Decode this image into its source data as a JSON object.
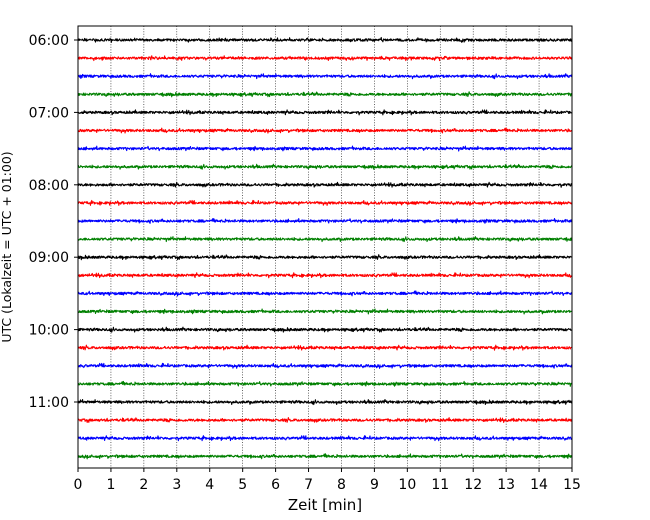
{
  "chart_data": {
    "type": "line",
    "title": "",
    "xlabel": "Zeit  [min]",
    "ylabel": "UTC (Lokalzeit = UTC + 01:00)",
    "xlim": [
      0,
      15
    ],
    "x_ticks": [
      "0",
      "1",
      "2",
      "3",
      "4",
      "5",
      "6",
      "7",
      "8",
      "9",
      "10",
      "11",
      "12",
      "13",
      "14",
      "15"
    ],
    "y_ticks": [
      "06:00",
      "07:00",
      "08:00",
      "09:00",
      "10:00",
      "11:00"
    ],
    "grid": "vertical dotted lines at each minute",
    "trace_interval_minutes": 15,
    "trace_colors": [
      "#000000",
      "#ff0000",
      "#0000ff",
      "#008000"
    ],
    "series": [
      {
        "start": "06:00",
        "color": "#000000"
      },
      {
        "start": "06:15",
        "color": "#ff0000"
      },
      {
        "start": "06:30",
        "color": "#0000ff"
      },
      {
        "start": "06:45",
        "color": "#008000"
      },
      {
        "start": "07:00",
        "color": "#000000"
      },
      {
        "start": "07:15",
        "color": "#ff0000"
      },
      {
        "start": "07:30",
        "color": "#0000ff"
      },
      {
        "start": "07:45",
        "color": "#008000"
      },
      {
        "start": "08:00",
        "color": "#000000"
      },
      {
        "start": "08:15",
        "color": "#ff0000"
      },
      {
        "start": "08:30",
        "color": "#0000ff"
      },
      {
        "start": "08:45",
        "color": "#008000"
      },
      {
        "start": "09:00",
        "color": "#000000"
      },
      {
        "start": "09:15",
        "color": "#ff0000"
      },
      {
        "start": "09:30",
        "color": "#0000ff"
      },
      {
        "start": "09:45",
        "color": "#008000"
      },
      {
        "start": "10:00",
        "color": "#000000"
      },
      {
        "start": "10:15",
        "color": "#ff0000"
      },
      {
        "start": "10:30",
        "color": "#0000ff"
      },
      {
        "start": "10:45",
        "color": "#008000"
      },
      {
        "start": "11:00",
        "color": "#000000"
      },
      {
        "start": "11:15",
        "color": "#ff0000"
      },
      {
        "start": "11:30",
        "color": "#0000ff"
      },
      {
        "start": "11:45",
        "color": "#008000"
      }
    ]
  }
}
